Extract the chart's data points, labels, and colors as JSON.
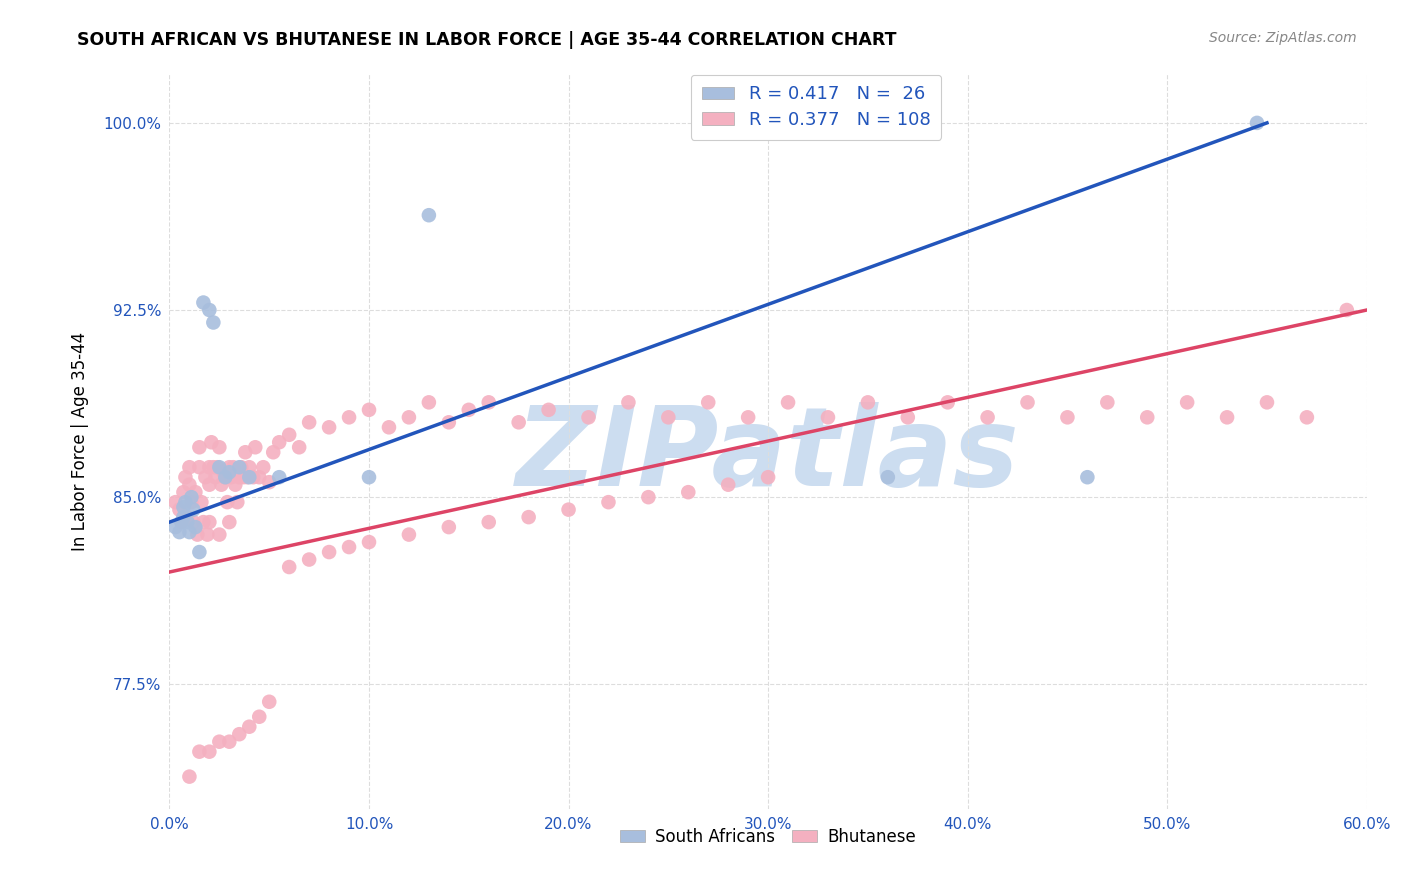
{
  "title": "SOUTH AFRICAN VS BHUTANESE IN LABOR FORCE | AGE 35-44 CORRELATION CHART",
  "source": "Source: ZipAtlas.com",
  "ylabel": "In Labor Force | Age 35-44",
  "xlim": [
    0.0,
    0.6
  ],
  "ylim": [
    0.725,
    1.02
  ],
  "xtick_vals": [
    0.0,
    0.1,
    0.2,
    0.3,
    0.4,
    0.5,
    0.6
  ],
  "xtick_labels": [
    "0.0%",
    "10.0%",
    "20.0%",
    "30.0%",
    "40.0%",
    "50.0%",
    "60.0%"
  ],
  "ytick_vals": [
    0.775,
    0.85,
    0.925,
    1.0
  ],
  "ytick_labels": [
    "77.5%",
    "85.0%",
    "92.5%",
    "100.0%"
  ],
  "r_sa": 0.417,
  "n_sa": 26,
  "r_bh": 0.377,
  "n_bh": 108,
  "color_sa": "#a8bedd",
  "color_bh": "#f4b0c0",
  "line_color_sa": "#2255bb",
  "line_color_bh": "#dd4466",
  "watermark": "ZIPatlas",
  "watermark_color": "#ccddf0",
  "background_color": "#ffffff",
  "grid_color": "#dddddd",
  "sa_x": [
    0.003,
    0.005,
    0.006,
    0.007,
    0.007,
    0.008,
    0.009,
    0.01,
    0.011,
    0.012,
    0.013,
    0.015,
    0.017,
    0.02,
    0.022,
    0.025,
    0.028,
    0.03,
    0.035,
    0.04,
    0.055,
    0.1,
    0.13,
    0.36,
    0.46,
    0.545
  ],
  "sa_y": [
    0.838,
    0.836,
    0.84,
    0.842,
    0.846,
    0.848,
    0.84,
    0.836,
    0.85,
    0.845,
    0.838,
    0.828,
    0.928,
    0.925,
    0.92,
    0.862,
    0.858,
    0.86,
    0.862,
    0.858,
    0.858,
    0.858,
    0.963,
    0.858,
    0.858,
    1.0
  ],
  "bh_x": [
    0.003,
    0.005,
    0.006,
    0.007,
    0.008,
    0.009,
    0.01,
    0.01,
    0.011,
    0.012,
    0.013,
    0.014,
    0.015,
    0.015,
    0.016,
    0.017,
    0.018,
    0.019,
    0.02,
    0.02,
    0.021,
    0.022,
    0.023,
    0.024,
    0.025,
    0.026,
    0.027,
    0.028,
    0.029,
    0.03,
    0.031,
    0.032,
    0.033,
    0.034,
    0.035,
    0.036,
    0.037,
    0.038,
    0.039,
    0.04,
    0.042,
    0.043,
    0.045,
    0.047,
    0.05,
    0.052,
    0.055,
    0.06,
    0.065,
    0.07,
    0.08,
    0.09,
    0.1,
    0.11,
    0.12,
    0.13,
    0.14,
    0.15,
    0.16,
    0.175,
    0.19,
    0.21,
    0.23,
    0.25,
    0.27,
    0.29,
    0.31,
    0.33,
    0.35,
    0.37,
    0.39,
    0.41,
    0.43,
    0.45,
    0.47,
    0.49,
    0.51,
    0.53,
    0.55,
    0.57,
    0.59,
    0.02,
    0.025,
    0.03,
    0.01,
    0.015,
    0.02,
    0.025,
    0.03,
    0.035,
    0.04,
    0.045,
    0.05,
    0.06,
    0.07,
    0.08,
    0.09,
    0.1,
    0.12,
    0.14,
    0.16,
    0.18,
    0.2,
    0.22,
    0.24,
    0.26,
    0.28,
    0.3
  ],
  "bh_y": [
    0.848,
    0.845,
    0.84,
    0.852,
    0.858,
    0.842,
    0.855,
    0.862,
    0.848,
    0.84,
    0.852,
    0.835,
    0.862,
    0.87,
    0.848,
    0.84,
    0.858,
    0.835,
    0.855,
    0.862,
    0.872,
    0.862,
    0.858,
    0.862,
    0.87,
    0.855,
    0.86,
    0.858,
    0.848,
    0.862,
    0.858,
    0.862,
    0.855,
    0.848,
    0.858,
    0.862,
    0.858,
    0.868,
    0.858,
    0.862,
    0.858,
    0.87,
    0.858,
    0.862,
    0.856,
    0.868,
    0.872,
    0.875,
    0.87,
    0.88,
    0.878,
    0.882,
    0.885,
    0.878,
    0.882,
    0.888,
    0.88,
    0.885,
    0.888,
    0.88,
    0.885,
    0.882,
    0.888,
    0.882,
    0.888,
    0.882,
    0.888,
    0.882,
    0.888,
    0.882,
    0.888,
    0.882,
    0.888,
    0.882,
    0.888,
    0.882,
    0.888,
    0.882,
    0.888,
    0.882,
    0.925,
    0.84,
    0.835,
    0.84,
    0.738,
    0.748,
    0.748,
    0.752,
    0.752,
    0.755,
    0.758,
    0.762,
    0.768,
    0.822,
    0.825,
    0.828,
    0.83,
    0.832,
    0.835,
    0.838,
    0.84,
    0.842,
    0.845,
    0.848,
    0.85,
    0.852,
    0.855,
    0.858
  ]
}
